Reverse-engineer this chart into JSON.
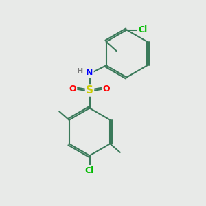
{
  "background_color": "#e8eae8",
  "bond_color": "#3a7a5a",
  "bond_width": 1.5,
  "atom_colors": {
    "S": "#cccc00",
    "O": "#ff0000",
    "N": "#0000ff",
    "Cl": "#00bb00",
    "H": "#777777",
    "C": "#3a7a5a"
  },
  "font_size_S": 11,
  "font_size_atom": 9,
  "font_size_H": 8,
  "fig_size": [
    3.0,
    3.0
  ],
  "dpi": 100
}
